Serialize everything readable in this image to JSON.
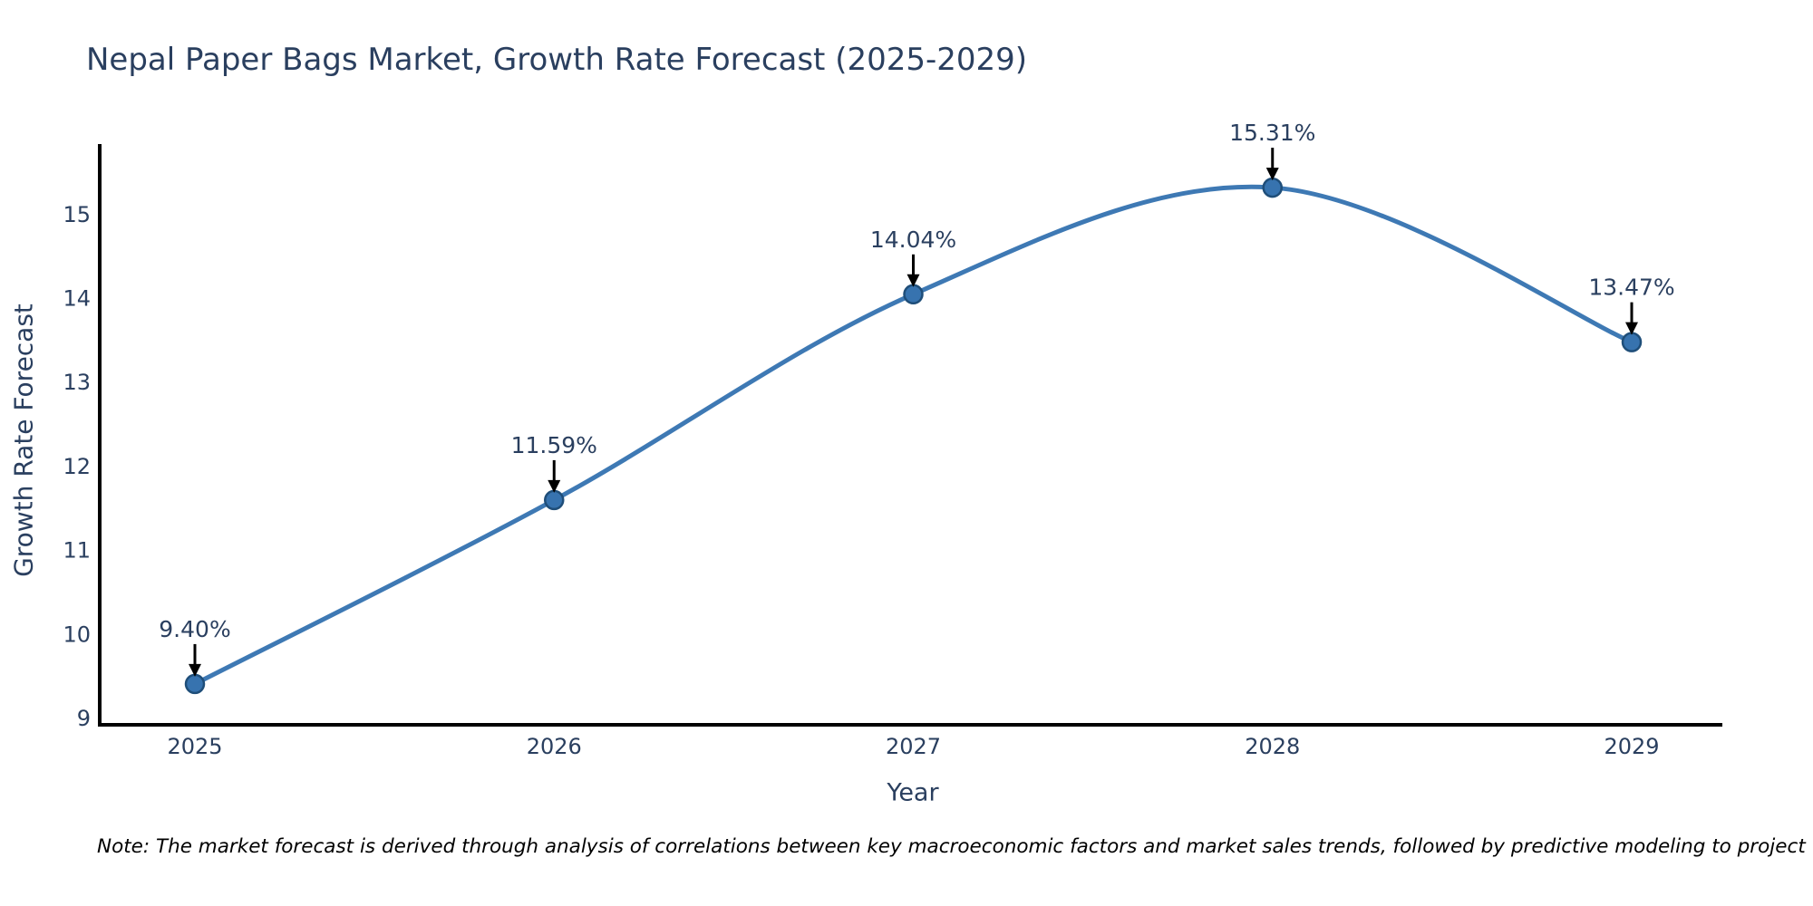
{
  "chart_data": {
    "type": "line",
    "title": "Nepal Paper Bags Market, Growth Rate Forecast (2025-2029)",
    "xlabel": "Year",
    "ylabel": "Growth Rate Forecast",
    "categories": [
      "2025",
      "2026",
      "2027",
      "2028",
      "2029"
    ],
    "values": [
      9.4,
      11.59,
      14.04,
      15.31,
      13.47
    ],
    "point_labels": [
      "9.40%",
      "11.59%",
      "14.04%",
      "15.31%",
      "13.47%"
    ],
    "yticks": [
      9,
      10,
      11,
      12,
      13,
      14,
      15
    ],
    "ylim": [
      9,
      15.8
    ],
    "line_shape": "spline",
    "grid": false,
    "legend_visible": false,
    "annotations_have_arrows": true,
    "colors": {
      "line": "#3E79B4",
      "marker_fill": "#3773AF",
      "marker_edge": "#1F4E79",
      "text": "#2A3F5F",
      "axis": "#000000",
      "arrow": "#000000",
      "background": "#FFFFFF"
    },
    "note": "Note: The market forecast is derived through analysis of correlations between key macroeconomic factors and market sales trends, followed by predictive modeling to project future sales"
  }
}
